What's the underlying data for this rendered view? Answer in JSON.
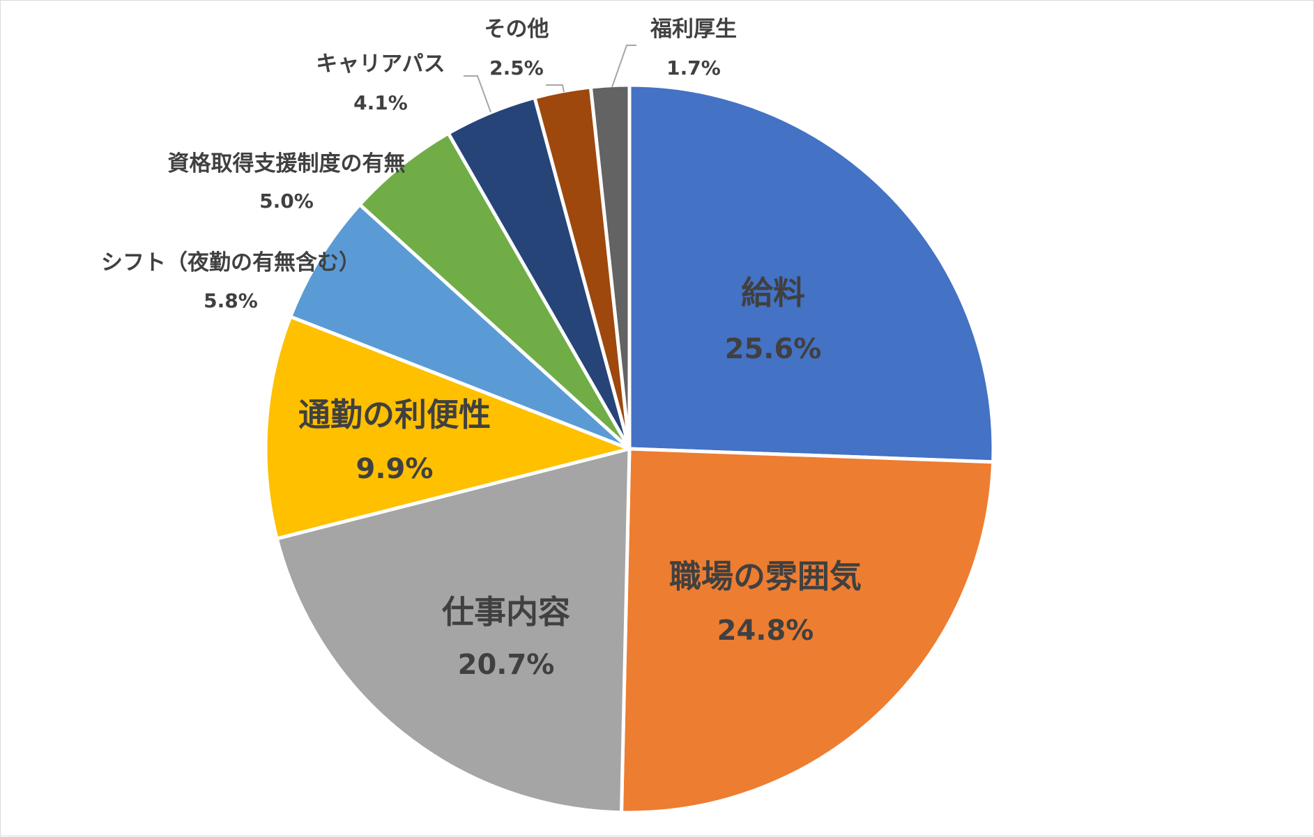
{
  "chart_data": {
    "type": "pie",
    "title": "",
    "start_angle_deg": 0,
    "direction": "clockwise",
    "slices": [
      {
        "name": "給料",
        "percent": "25.6%",
        "value": 25.6,
        "color": "#4472C4"
      },
      {
        "name": "職場の雰囲気",
        "percent": "24.8%",
        "value": 24.8,
        "color": "#ED7D31"
      },
      {
        "name": "仕事内容",
        "percent": "20.7%",
        "value": 20.7,
        "color": "#A5A5A5"
      },
      {
        "name": "通勤の利便性",
        "percent": "9.9%",
        "value": 9.9,
        "color": "#FFC000"
      },
      {
        "name": "シフト（夜勤の有無含む）",
        "percent": "5.8%",
        "value": 5.8,
        "color": "#5B9BD5"
      },
      {
        "name": "資格取得支援制度の有無",
        "percent": "5.0%",
        "value": 5.0,
        "color": "#70AD47"
      },
      {
        "name": "キャリアパス",
        "percent": "4.1%",
        "value": 4.1,
        "color": "#264478"
      },
      {
        "name": "その他",
        "percent": "2.5%",
        "value": 2.5,
        "color": "#9E480E"
      },
      {
        "name": "福利厚生",
        "percent": "1.7%",
        "value": 1.7,
        "color": "#636363"
      }
    ],
    "legend": "none"
  }
}
